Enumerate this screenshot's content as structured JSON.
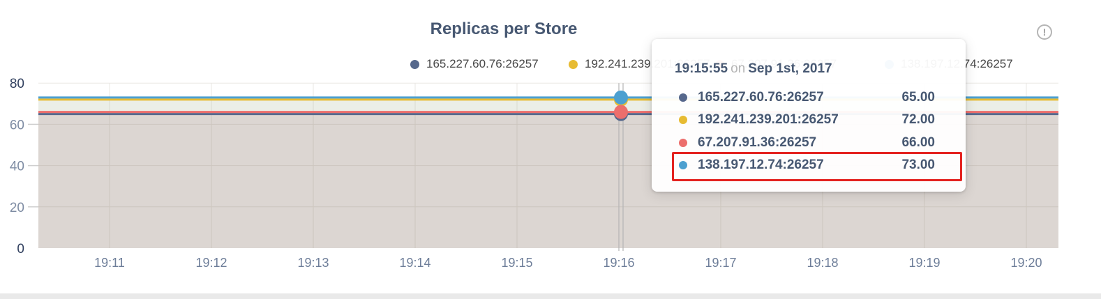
{
  "page": {
    "background": "#ffffff",
    "bottom_divider_color": "#e9e9e9"
  },
  "header": {
    "title": "Replicas per Store",
    "title_color": "#475872",
    "info_icon": "exclamation-circle-icon",
    "info_icon_glyph": "!"
  },
  "chart_data": {
    "type": "line",
    "title": "Replicas per Store",
    "x_ticks": [
      "19:11",
      "19:12",
      "19:13",
      "19:14",
      "19:15",
      "19:16",
      "19:17",
      "19:18",
      "19:19",
      "19:20"
    ],
    "y_ticks": [
      0,
      20,
      40,
      60,
      80
    ],
    "ylim": [
      0,
      80
    ],
    "grid": true,
    "legend_position": "top",
    "area_fill_opacity": 0.1,
    "series": [
      {
        "name": "165.227.60.76:26257",
        "color": "#56688c",
        "value": 65
      },
      {
        "name": "192.241.239.201:26257",
        "color": "#e7bb32",
        "value": 72
      },
      {
        "name": "67.207.91.36:26257",
        "color": "#ec6e6c",
        "value": 66
      },
      {
        "name": "138.197.12.74:26257",
        "color": "#4da0d0",
        "value": 73
      }
    ],
    "hover_time": "19:15:55"
  },
  "tooltip": {
    "time": "19:15:55",
    "connector": "on",
    "date": "Sep 1st, 2017",
    "text_color": "#475872",
    "highlight_border_color": "#e42320",
    "rows": [
      {
        "name": "165.227.60.76:26257",
        "value": "65.00",
        "color": "#56688c",
        "highlighted": false
      },
      {
        "name": "192.241.239.201:26257",
        "value": "72.00",
        "color": "#e7bb32",
        "highlighted": false
      },
      {
        "name": "67.207.91.36:26257",
        "value": "66.00",
        "color": "#ec6e6c",
        "highlighted": false
      },
      {
        "name": "138.197.12.74:26257",
        "value": "73.00",
        "color": "#4da0d0",
        "highlighted": true
      }
    ]
  }
}
